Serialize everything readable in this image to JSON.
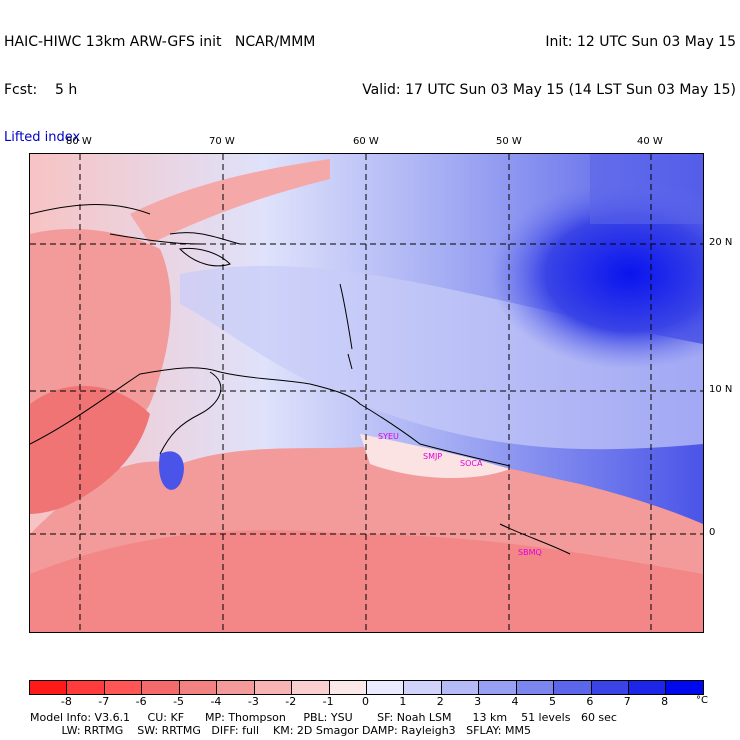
{
  "header": {
    "left_line1": "HAIC-HIWC 13km ARW-GFS init   NCAR/MMM",
    "left_line2": "Fcst:    5 h",
    "field_name": "Lifted index",
    "right_line1": "Init: 12 UTC Sun 03 May 15",
    "right_line2": "Valid: 17 UTC Sun 03 May 15 (14 LST Sun 03 May 15)"
  },
  "axes": {
    "lon_labels": [
      "80 W",
      "70 W",
      "60 W",
      "50 W",
      "40 W"
    ],
    "lat_labels": [
      "20 N",
      "10 N",
      "0"
    ]
  },
  "stations": [
    "SYEU",
    "SMJP",
    "SOCA",
    "SBMQ"
  ],
  "colorbar": {
    "labels": [
      "-8",
      "-7",
      "-6",
      "-5",
      "-4",
      "-3",
      "-2",
      "-1",
      "0",
      "1",
      "2",
      "3",
      "4",
      "5",
      "6",
      "7",
      "8"
    ],
    "unit": "°C",
    "colors": [
      "#ff1a1a",
      "#ff3b3b",
      "#ff5555",
      "#f56a6a",
      "#f28282",
      "#f59a9a",
      "#f8b4b4",
      "#fbcfcf",
      "#fbe8e8",
      "#e9eaff",
      "#d0d4fb",
      "#b4bbf6",
      "#97a0f2",
      "#7c86ee",
      "#5c66ea",
      "#3a44e6",
      "#1d26e8",
      "#0008ee"
    ]
  },
  "footer": {
    "line1": "Model Info: V3.6.1     CU: KF      MP: Thompson     PBL: YSU       SF: Noah LSM      13 km    51 levels   60 sec",
    "line2": "         LW: RRTMG    SW: RRTMG   DIFF: full    KM: 2D Smagor DAMP: Rayleigh3   SFLAY: MM5"
  }
}
